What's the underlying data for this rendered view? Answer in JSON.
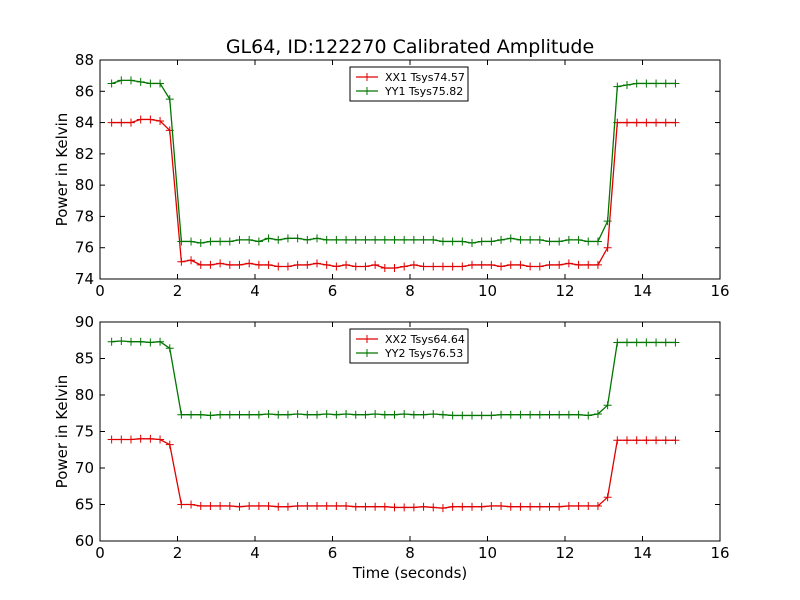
{
  "figure": {
    "title": "GL64, ID:122270 Calibrated Amplitude"
  },
  "chart_data": [
    {
      "type": "line",
      "title": "GL64, ID:122270 Calibrated Amplitude",
      "xlabel": "",
      "ylabel": "Power in Kelvin",
      "xlim": [
        0,
        16
      ],
      "ylim": [
        74,
        88
      ],
      "xticks": [
        "0",
        "2",
        "4",
        "6",
        "8",
        "10",
        "12",
        "14",
        "16"
      ],
      "yticks": [
        "74",
        "76",
        "78",
        "80",
        "82",
        "84",
        "86",
        "88"
      ],
      "legend_position": "top-center",
      "grid": false,
      "x": [
        0.3,
        0.55,
        0.8,
        1.05,
        1.3,
        1.55,
        1.8,
        2.1,
        2.35,
        2.6,
        2.85,
        3.1,
        3.35,
        3.6,
        3.85,
        4.1,
        4.35,
        4.6,
        4.85,
        5.1,
        5.35,
        5.6,
        5.85,
        6.1,
        6.35,
        6.6,
        6.85,
        7.1,
        7.35,
        7.6,
        7.85,
        8.1,
        8.35,
        8.6,
        8.85,
        9.1,
        9.35,
        9.6,
        9.85,
        10.1,
        10.35,
        10.6,
        10.85,
        11.1,
        11.35,
        11.6,
        11.85,
        12.1,
        12.35,
        12.6,
        12.85,
        13.1,
        13.35,
        13.6,
        13.85,
        14.1,
        14.35,
        14.6,
        14.85
      ],
      "series": [
        {
          "name": "XX1 Tsys74.57",
          "color": "#e00000",
          "values": [
            84.0,
            84.0,
            84.0,
            84.2,
            84.2,
            84.1,
            83.5,
            75.1,
            75.2,
            74.9,
            74.9,
            75.0,
            74.9,
            74.9,
            75.0,
            74.9,
            74.9,
            74.8,
            74.8,
            74.9,
            74.9,
            75.0,
            74.9,
            74.8,
            74.9,
            74.8,
            74.8,
            74.9,
            74.7,
            74.7,
            74.8,
            74.9,
            74.8,
            74.8,
            74.8,
            74.8,
            74.8,
            74.9,
            74.9,
            74.9,
            74.8,
            74.9,
            74.9,
            74.8,
            74.8,
            74.9,
            74.9,
            75.0,
            74.9,
            74.9,
            74.9,
            76.0,
            84.0,
            84.0,
            84.0,
            84.0,
            84.0,
            84.0,
            84.0
          ]
        },
        {
          "name": "YY1 Tsys75.82",
          "color": "#007700",
          "values": [
            86.5,
            86.7,
            86.7,
            86.6,
            86.5,
            86.5,
            85.5,
            76.4,
            76.4,
            76.3,
            76.4,
            76.4,
            76.4,
            76.5,
            76.5,
            76.4,
            76.6,
            76.5,
            76.6,
            76.6,
            76.5,
            76.6,
            76.5,
            76.5,
            76.5,
            76.5,
            76.5,
            76.5,
            76.5,
            76.5,
            76.5,
            76.5,
            76.5,
            76.5,
            76.4,
            76.4,
            76.4,
            76.3,
            76.4,
            76.4,
            76.5,
            76.6,
            76.5,
            76.5,
            76.5,
            76.4,
            76.4,
            76.5,
            76.5,
            76.4,
            76.4,
            77.7,
            86.3,
            86.4,
            86.5,
            86.5,
            86.5,
            86.5,
            86.5
          ]
        }
      ]
    },
    {
      "type": "line",
      "title": "",
      "xlabel": "Time (seconds)",
      "ylabel": "Power in Kelvin",
      "xlim": [
        0,
        16
      ],
      "ylim": [
        60,
        90
      ],
      "xticks": [
        "0",
        "2",
        "4",
        "6",
        "8",
        "10",
        "12",
        "14",
        "16"
      ],
      "yticks": [
        "60",
        "65",
        "70",
        "75",
        "80",
        "85",
        "90"
      ],
      "legend_position": "top-center",
      "grid": false,
      "x": [
        0.3,
        0.55,
        0.8,
        1.05,
        1.3,
        1.55,
        1.8,
        2.1,
        2.35,
        2.6,
        2.85,
        3.1,
        3.35,
        3.6,
        3.85,
        4.1,
        4.35,
        4.6,
        4.85,
        5.1,
        5.35,
        5.6,
        5.85,
        6.1,
        6.35,
        6.6,
        6.85,
        7.1,
        7.35,
        7.6,
        7.85,
        8.1,
        8.35,
        8.6,
        8.85,
        9.1,
        9.35,
        9.6,
        9.85,
        10.1,
        10.35,
        10.6,
        10.85,
        11.1,
        11.35,
        11.6,
        11.85,
        12.1,
        12.35,
        12.6,
        12.85,
        13.1,
        13.35,
        13.6,
        13.85,
        14.1,
        14.35,
        14.6,
        14.85
      ],
      "series": [
        {
          "name": "XX2 Tsys64.64",
          "color": "#e00000",
          "values": [
            73.9,
            73.9,
            73.9,
            74.0,
            74.0,
            73.9,
            73.2,
            65.0,
            65.0,
            64.8,
            64.8,
            64.8,
            64.8,
            64.7,
            64.8,
            64.8,
            64.8,
            64.7,
            64.7,
            64.8,
            64.8,
            64.8,
            64.8,
            64.8,
            64.8,
            64.7,
            64.7,
            64.7,
            64.7,
            64.6,
            64.6,
            64.6,
            64.7,
            64.6,
            64.5,
            64.7,
            64.7,
            64.7,
            64.7,
            64.8,
            64.8,
            64.7,
            64.7,
            64.7,
            64.7,
            64.7,
            64.7,
            64.8,
            64.8,
            64.8,
            64.8,
            66.0,
            73.8,
            73.8,
            73.8,
            73.8,
            73.8,
            73.8,
            73.8
          ]
        },
        {
          "name": "YY2 Tsys76.53",
          "color": "#007700",
          "values": [
            87.3,
            87.4,
            87.3,
            87.3,
            87.2,
            87.3,
            86.4,
            77.3,
            77.3,
            77.3,
            77.2,
            77.3,
            77.3,
            77.3,
            77.3,
            77.3,
            77.4,
            77.3,
            77.3,
            77.4,
            77.3,
            77.3,
            77.4,
            77.3,
            77.4,
            77.3,
            77.3,
            77.4,
            77.3,
            77.3,
            77.4,
            77.3,
            77.3,
            77.4,
            77.3,
            77.2,
            77.2,
            77.2,
            77.2,
            77.2,
            77.3,
            77.3,
            77.3,
            77.3,
            77.3,
            77.3,
            77.3,
            77.3,
            77.3,
            77.2,
            77.4,
            78.6,
            87.2,
            87.2,
            87.2,
            87.2,
            87.2,
            87.2,
            87.2
          ]
        }
      ]
    }
  ]
}
